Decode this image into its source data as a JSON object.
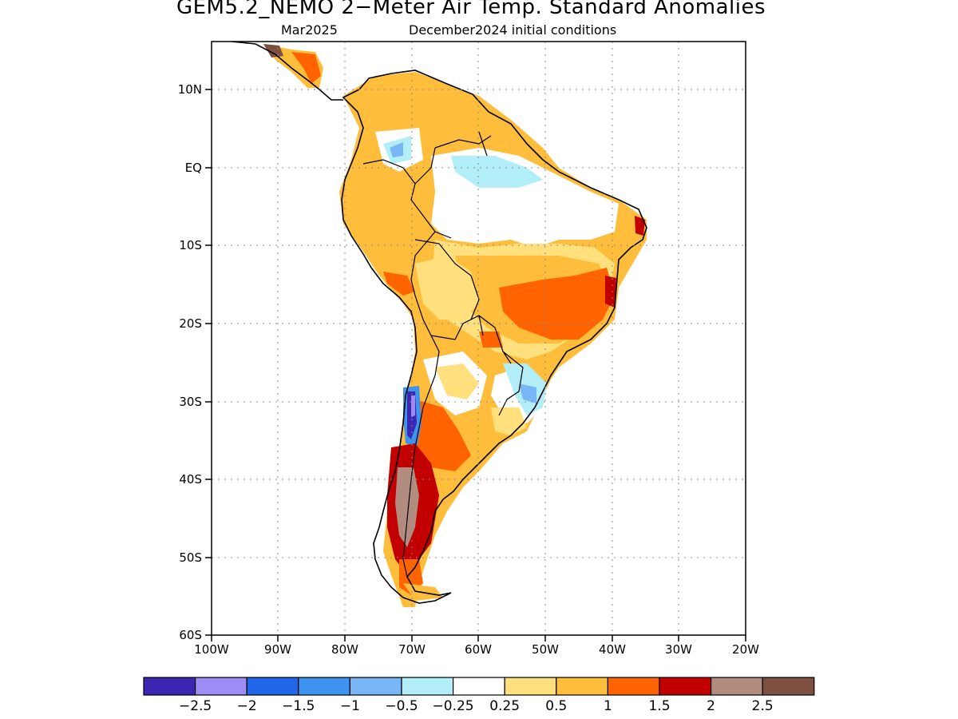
{
  "title": "GEM5.2_NEMO 2−Meter Air Temp. Standard Anomalies",
  "subtitle_left": "Mar2025",
  "subtitle_right": "December2024 initial conditions",
  "lat_labels": [
    "10N",
    "EQ",
    "10S",
    "20S",
    "30S",
    "40S",
    "50S",
    "60S"
  ],
  "lon_labels": [
    "100W",
    "90W",
    "80W",
    "70W",
    "60W",
    "50W",
    "40W",
    "30W",
    "20W"
  ],
  "colorbar": {
    "colors": [
      "#3c27b5",
      "#9e8cf5",
      "#1f66e8",
      "#3c93f0",
      "#78b6f6",
      "#b2eef8",
      "#ffffff",
      "#ffe07c",
      "#ffbd3c",
      "#ff6400",
      "#c20000",
      "#b38c80",
      "#7d4f41"
    ],
    "labels": [
      "−2.5",
      "−2",
      "−1.5",
      "−1",
      "−0.5",
      "−0.25",
      "0.25",
      "0.5",
      "1",
      "1.5",
      "2",
      "2.5"
    ]
  },
  "palette": {
    "warm1": "#ffe07c",
    "warm2": "#ffbd3c",
    "warm3": "#ff6400",
    "warm4": "#c20000",
    "warm5": "#b38c80",
    "warm6": "#7d4f41",
    "cool1": "#b2eef8",
    "cool2": "#78b6f6",
    "cool3": "#3c93f0",
    "cool5": "#3c27b5",
    "cool4": "#9e8cf5"
  }
}
